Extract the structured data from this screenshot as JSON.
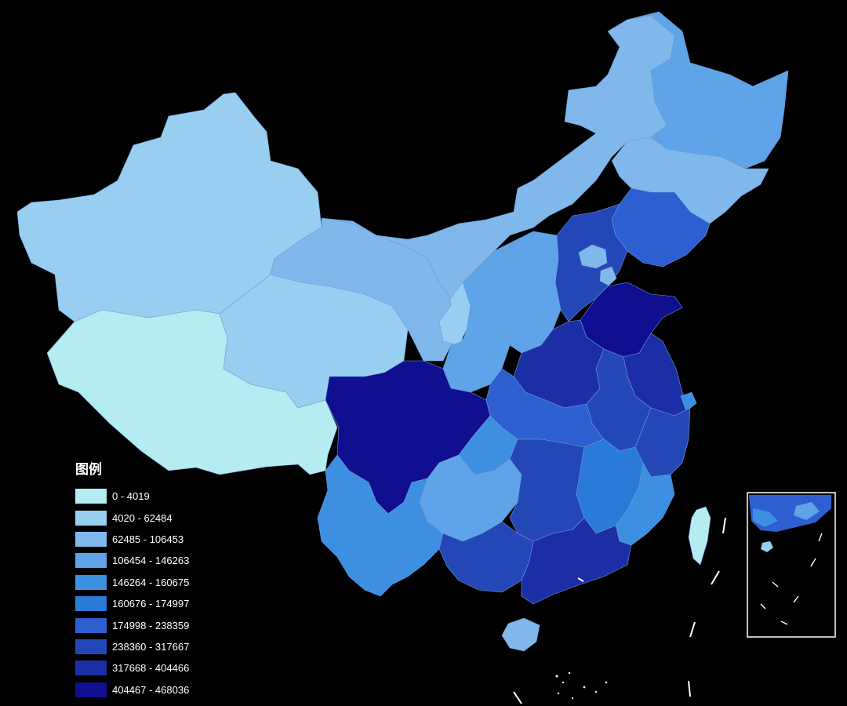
{
  "legend": {
    "title": "图例",
    "classes": [
      {
        "label": "0 - 4019",
        "color": "#b4ecf2"
      },
      {
        "label": "4020 - 62484",
        "color": "#98cff0"
      },
      {
        "label": "62485 - 106453",
        "color": "#80b8ec"
      },
      {
        "label": "106454 - 146263",
        "color": "#5fa3e8"
      },
      {
        "label": "146264 - 160675",
        "color": "#3d8fe2"
      },
      {
        "label": "160676 - 174997",
        "color": "#2a7ad8"
      },
      {
        "label": "174998 - 238359",
        "color": "#2d5fd0"
      },
      {
        "label": "238360 - 317667",
        "color": "#2447b8"
      },
      {
        "label": "317668 - 404466",
        "color": "#1c2ea6"
      },
      {
        "label": "404467 - 468036",
        "color": "#100f90"
      }
    ]
  },
  "regions": [
    {
      "name": "xinjiang",
      "class": 1
    },
    {
      "name": "tibet",
      "class": 0
    },
    {
      "name": "qinghai",
      "class": 1
    },
    {
      "name": "gansu",
      "class": 2
    },
    {
      "name": "ningxia",
      "class": 1
    },
    {
      "name": "inner-mongolia",
      "class": 2
    },
    {
      "name": "heilongjiang",
      "class": 3
    },
    {
      "name": "jilin",
      "class": 2
    },
    {
      "name": "liaoning",
      "class": 6
    },
    {
      "name": "beijing",
      "class": 2
    },
    {
      "name": "tianjin",
      "class": 2
    },
    {
      "name": "hebei",
      "class": 7
    },
    {
      "name": "shanxi",
      "class": 3
    },
    {
      "name": "shaanxi",
      "class": 3
    },
    {
      "name": "shandong",
      "class": 9
    },
    {
      "name": "henan",
      "class": 8
    },
    {
      "name": "jiangsu",
      "class": 8
    },
    {
      "name": "anhui",
      "class": 7
    },
    {
      "name": "hubei",
      "class": 6
    },
    {
      "name": "sichuan",
      "class": 9
    },
    {
      "name": "chongqing",
      "class": 4
    },
    {
      "name": "guizhou",
      "class": 3
    },
    {
      "name": "yunnan",
      "class": 4
    },
    {
      "name": "hunan",
      "class": 7
    },
    {
      "name": "jiangxi",
      "class": 5
    },
    {
      "name": "zhejiang",
      "class": 7
    },
    {
      "name": "fujian",
      "class": 4
    },
    {
      "name": "guangxi",
      "class": 7
    },
    {
      "name": "guangdong",
      "class": 8
    },
    {
      "name": "hainan",
      "class": 2
    },
    {
      "name": "taiwan",
      "class": 0
    },
    {
      "name": "shanghai",
      "class": 4
    }
  ]
}
